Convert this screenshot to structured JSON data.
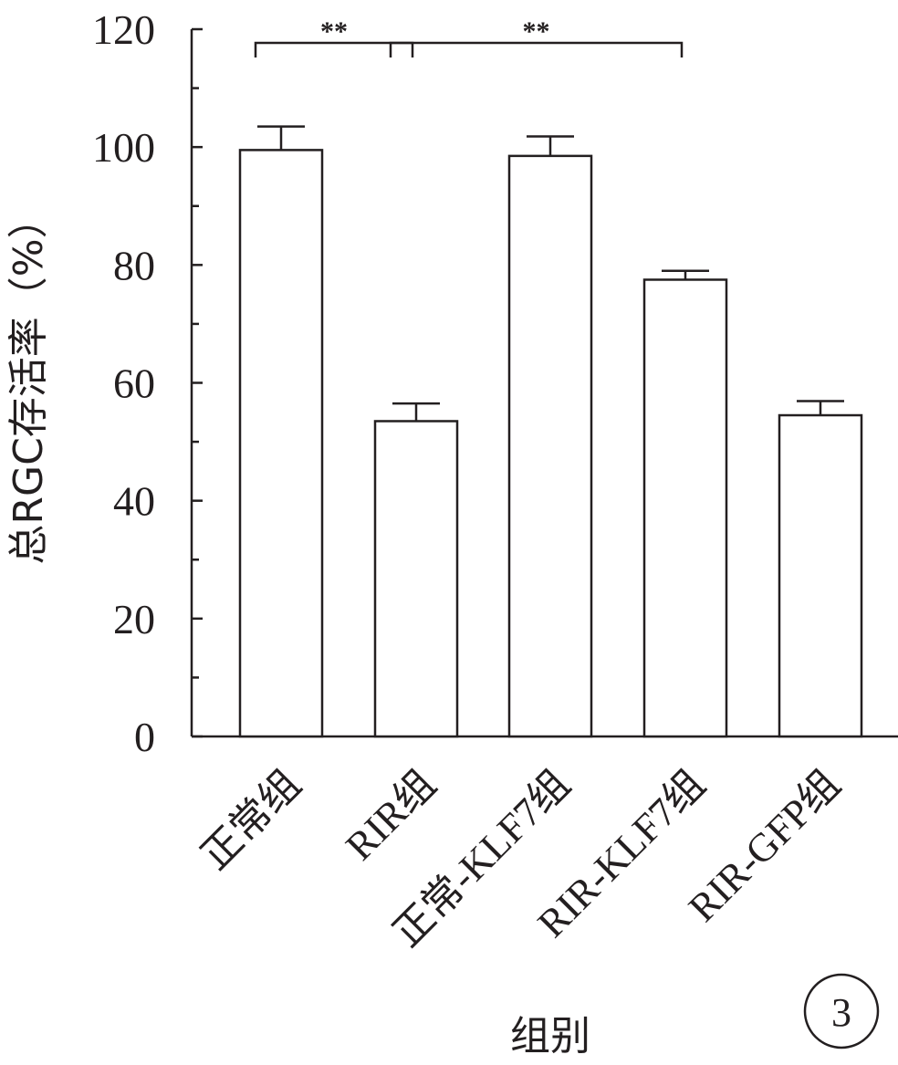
{
  "chart_data": {
    "type": "bar",
    "categories": [
      "正常组",
      "RIR组",
      "正常-KLF7组",
      "RIR-KLF7组",
      "RIR-GFP组"
    ],
    "values": [
      99.5,
      53.5,
      98.5,
      77.5,
      54.5
    ],
    "errors": [
      4.0,
      3.0,
      3.3,
      1.5,
      2.4
    ],
    "xlabel": "组别",
    "ylabel": "总RGC存活率（%）",
    "ylim": [
      0,
      120
    ],
    "yticks": [
      0,
      20,
      40,
      60,
      80,
      100,
      120
    ],
    "grid": false,
    "significance": [
      {
        "from": 0,
        "to": 1,
        "label": "**"
      },
      {
        "from": 1,
        "to": 3,
        "label": "**"
      }
    ],
    "colors": {
      "bar_fill": "#ffffff",
      "stroke": "#231f20"
    }
  },
  "panel_label": "3"
}
